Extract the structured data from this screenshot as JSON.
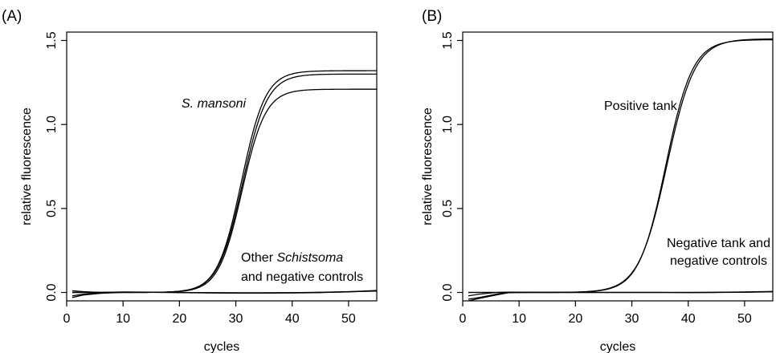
{
  "chart_data": [
    {
      "type": "line",
      "panel_label": "(A)",
      "xlabel": "cycles",
      "ylabel": "relative fluorescence",
      "xlim": [
        0,
        55
      ],
      "ylim": [
        -0.05,
        1.55
      ],
      "xticks": [
        0,
        10,
        20,
        30,
        40,
        50
      ],
      "yticks": [
        0.0,
        0.5,
        1.0,
        1.5
      ],
      "ytick_labels": [
        "0.0",
        "0.5",
        "1.0",
        "1.5"
      ],
      "grid": false,
      "legend": "none",
      "annotations": [
        {
          "text": "S. mansoni",
          "italic": true
        },
        {
          "text_parts": [
            {
              "text": "Other ",
              "italic": false
            },
            {
              "text": "Schistsoma",
              "italic": true
            }
          ]
        },
        {
          "text": "and negative controls",
          "italic": false
        }
      ],
      "series": [
        {
          "kind": "sigmoid",
          "plateau": 1.32,
          "midpoint": 31.0,
          "slope": 0.47
        },
        {
          "kind": "sigmoid",
          "plateau": 1.3,
          "midpoint": 31.2,
          "slope": 0.46
        },
        {
          "kind": "sigmoid",
          "plateau": 1.21,
          "midpoint": 31.1,
          "slope": 0.48
        },
        {
          "kind": "baseline",
          "x": [
            1,
            3,
            6,
            10,
            15,
            20,
            25,
            30,
            35,
            40,
            45,
            50,
            55
          ],
          "y": [
            -0.02,
            -0.01,
            0.0,
            0.003,
            0.002,
            0.0,
            -0.002,
            -0.003,
            -0.003,
            -0.002,
            0.0,
            0.003,
            0.01
          ]
        },
        {
          "kind": "baseline",
          "x": [
            1,
            3,
            6,
            10,
            15,
            20,
            25,
            30,
            35,
            40,
            45,
            50,
            55
          ],
          "y": [
            0.01,
            0.005,
            0.0,
            0.002,
            0.001,
            -0.001,
            -0.003,
            -0.004,
            -0.004,
            -0.003,
            -0.001,
            0.004,
            0.012
          ]
        },
        {
          "kind": "baseline",
          "x": [
            1,
            3,
            6,
            10,
            15,
            20,
            25,
            30,
            35,
            40,
            45,
            50,
            55
          ],
          "y": [
            -0.03,
            -0.015,
            -0.005,
            0.0,
            0.001,
            0.0,
            -0.001,
            -0.002,
            -0.002,
            -0.001,
            0.001,
            0.005,
            0.008
          ]
        }
      ]
    },
    {
      "type": "line",
      "panel_label": "(B)",
      "xlabel": "cycles",
      "ylabel": "relative fluorescence",
      "xlim": [
        0,
        55
      ],
      "ylim": [
        -0.05,
        1.55
      ],
      "xticks": [
        0,
        10,
        20,
        30,
        40,
        50
      ],
      "yticks": [
        0.0,
        0.5,
        1.0,
        1.5
      ],
      "ytick_labels": [
        "0.0",
        "0.5",
        "1.0",
        "1.5"
      ],
      "grid": false,
      "legend": "none",
      "annotations": [
        {
          "text": "Positive tank",
          "italic": false
        },
        {
          "text": "Negative tank and",
          "italic": false
        },
        {
          "text": "negative controls",
          "italic": false
        }
      ],
      "series": [
        {
          "kind": "sigmoid",
          "plateau": 1.51,
          "midpoint": 36.2,
          "slope": 0.4
        },
        {
          "kind": "sigmoid",
          "plateau": 1.505,
          "midpoint": 36.0,
          "slope": 0.42
        },
        {
          "kind": "baseline",
          "x": [
            1,
            3,
            6,
            8,
            12,
            16,
            20,
            25,
            30,
            35,
            40,
            45,
            50,
            55
          ],
          "y": [
            -0.04,
            -0.03,
            -0.01,
            0.0,
            0.0,
            0.0,
            0.0,
            0.0,
            0.0,
            0.0,
            0.0,
            0.0,
            0.002,
            0.005
          ]
        },
        {
          "kind": "baseline",
          "x": [
            1,
            3,
            6,
            8,
            12,
            16,
            20,
            25,
            30,
            35,
            40,
            45,
            50,
            55
          ],
          "y": [
            -0.02,
            -0.01,
            0.0,
            0.002,
            0.001,
            0.0,
            0.0,
            0.0,
            0.0,
            0.0,
            0.0,
            0.001,
            0.003,
            0.006
          ]
        },
        {
          "kind": "baseline",
          "x": [
            1,
            3,
            6,
            8,
            12,
            16,
            20,
            25,
            30,
            35,
            40,
            45,
            50,
            55
          ],
          "y": [
            -0.05,
            -0.035,
            -0.015,
            -0.002,
            0.0,
            0.0,
            0.0,
            0.0,
            0.0,
            0.0,
            -0.001,
            0.0,
            0.001,
            0.004
          ]
        }
      ]
    }
  ]
}
